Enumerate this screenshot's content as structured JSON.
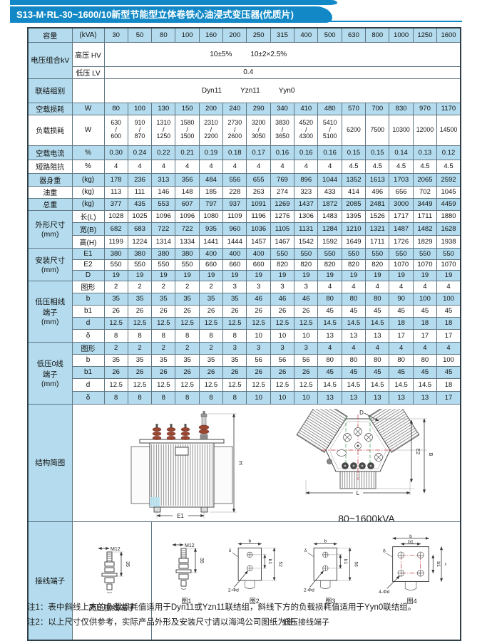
{
  "title": "S13-M·RL-30~1600/10新型节能型立体卷铁心油浸式变压器(优质片)",
  "table": {
    "cap": {
      "label": "容量",
      "unit": "(kVA)",
      "values": [
        "30",
        "50",
        "80",
        "100",
        "160",
        "200",
        "250",
        "315",
        "400",
        "500",
        "630",
        "800",
        "1000",
        "1250",
        "1600"
      ]
    },
    "volt": {
      "label": "电压组合kV",
      "hv": "高压 HV",
      "hv1": "10±5%",
      "hv2": "10±2×2.5%",
      "lv": "低压 LV",
      "lv_val": "0.4"
    },
    "vec": {
      "label": "联结组别",
      "v1": "Dyn11",
      "v2": "Yzn11",
      "v3": "Yyn0"
    },
    "groups": {
      "dim": "外形尺寸\n(mm)",
      "inst": "安装尺寸\n(mm)",
      "lvp": "低压相线\n端子\n(mm)",
      "lvz": "低压0线\n端子\n(mm)",
      "struct": "结构简图",
      "term": "接线端子"
    },
    "rows": {
      "nl": {
        "label": "空载损耗",
        "unit": "W",
        "values": [
          "80",
          "100",
          "130",
          "150",
          "200",
          "240",
          "290",
          "340",
          "410",
          "480",
          "570",
          "700",
          "830",
          "970",
          "1170"
        ]
      },
      "ll": {
        "label": "负载损耗",
        "unit": "W",
        "values": [
          "630\n/\n600",
          "910\n/\n870",
          "1310\n/\n1250",
          "1580\n/\n1500",
          "2310\n/\n2200",
          "2730\n/\n2600",
          "3200\n/\n3050",
          "3830\n/\n3650",
          "4520\n/\n4300",
          "5410\n/\n5100",
          "6200",
          "7500",
          "10300",
          "12000",
          "14500"
        ]
      },
      "nc": {
        "label": "空载电流",
        "unit": "%",
        "values": [
          "0.30",
          "0.24",
          "0.22",
          "0.21",
          "0.19",
          "0.18",
          "0.17",
          "0.16",
          "0.16",
          "0.16",
          "0.15",
          "0.15",
          "0.14",
          "0.13",
          "0.12"
        ]
      },
      "imp": {
        "label": "短路阻抗",
        "unit": "%",
        "values": [
          "4",
          "4",
          "4",
          "4",
          "4",
          "4",
          "4",
          "4",
          "4",
          "4",
          "4.5",
          "4.5",
          "4.5",
          "4.5",
          "4.5"
        ]
      },
      "bw": {
        "label": "器身重",
        "unit": "(kg)",
        "values": [
          "178",
          "236",
          "313",
          "356",
          "484",
          "556",
          "655",
          "769",
          "896",
          "1044",
          "1352",
          "1613",
          "1703",
          "2065",
          "2592"
        ]
      },
      "ow": {
        "label": "油重",
        "unit": "(kg)",
        "values": [
          "113",
          "111",
          "146",
          "148",
          "185",
          "228",
          "263",
          "274",
          "323",
          "433",
          "414",
          "496",
          "656",
          "702",
          "1045"
        ]
      },
      "tw": {
        "label": "总重",
        "unit": "(kg)",
        "values": [
          "377",
          "435",
          "553",
          "607",
          "797",
          "937",
          "1091",
          "1269",
          "1437",
          "1872",
          "2085",
          "2481",
          "3000",
          "3449",
          "4459"
        ]
      },
      "dl": {
        "label": "长(L)",
        "values": [
          "1028",
          "1025",
          "1096",
          "1096",
          "1080",
          "1109",
          "1196",
          "1276",
          "1306",
          "1483",
          "1395",
          "1526",
          "1717",
          "1711",
          "1880"
        ]
      },
      "db": {
        "label": "宽(B)",
        "values": [
          "682",
          "683",
          "722",
          "722",
          "935",
          "960",
          "1036",
          "1105",
          "1131",
          "1284",
          "1210",
          "1321",
          "1487",
          "1482",
          "1628"
        ]
      },
      "dh": {
        "label": "高(H)",
        "values": [
          "1199",
          "1224",
          "1314",
          "1334",
          "1441",
          "1444",
          "1457",
          "1467",
          "1542",
          "1592",
          "1649",
          "1711",
          "1726",
          "1829",
          "1938"
        ]
      },
      "e1": {
        "label": "E1",
        "values": [
          "380",
          "380",
          "380",
          "380",
          "400",
          "400",
          "400",
          "550",
          "550",
          "550",
          "550",
          "550",
          "550",
          "550",
          "550"
        ]
      },
      "e2": {
        "label": "E2",
        "values": [
          "550",
          "550",
          "550",
          "550",
          "660",
          "660",
          "660",
          "820",
          "820",
          "820",
          "820",
          "820",
          "1070",
          "1070",
          "1070"
        ]
      },
      "dd": {
        "label": "D",
        "values": [
          "19",
          "19",
          "19",
          "19",
          "19",
          "19",
          "19",
          "19",
          "19",
          "19",
          "19",
          "19",
          "19",
          "19",
          "19"
        ]
      },
      "pf": {
        "label": "图形",
        "values": [
          "2",
          "2",
          "2",
          "2",
          "2",
          "3",
          "3",
          "3",
          "3",
          "4",
          "4",
          "4",
          "4",
          "4",
          "4"
        ]
      },
      "pb": {
        "label": "b",
        "values": [
          "35",
          "35",
          "35",
          "35",
          "35",
          "35",
          "46",
          "46",
          "46",
          "80",
          "80",
          "80",
          "90",
          "100",
          "100"
        ]
      },
      "pb1": {
        "label": "b1",
        "values": [
          "26",
          "26",
          "26",
          "26",
          "26",
          "26",
          "26",
          "26",
          "26",
          "45",
          "45",
          "45",
          "45",
          "45",
          "45"
        ]
      },
      "pd": {
        "label": "d",
        "values": [
          "12.5",
          "12.5",
          "12.5",
          "12.5",
          "12.5",
          "12.5",
          "12.5",
          "12.5",
          "12.5",
          "14.5",
          "14.5",
          "14.5",
          "18",
          "18",
          "18"
        ]
      },
      "pdel": {
        "label": "δ",
        "values": [
          "8",
          "8",
          "8",
          "8",
          "8",
          "8",
          "10",
          "10",
          "10",
          "13",
          "13",
          "13",
          "17",
          "17",
          "17"
        ]
      },
      "zf": {
        "label": "图形",
        "values": [
          "2",
          "2",
          "2",
          "2",
          "2",
          "3",
          "3",
          "3",
          "3",
          "4",
          "4",
          "4",
          "4",
          "4",
          "4"
        ]
      },
      "zb": {
        "label": "b",
        "values": [
          "35",
          "35",
          "35",
          "35",
          "35",
          "35",
          "56",
          "56",
          "56",
          "80",
          "80",
          "80",
          "80",
          "80",
          "100"
        ]
      },
      "zb1": {
        "label": "b1",
        "values": [
          "26",
          "26",
          "26",
          "26",
          "26",
          "26",
          "26",
          "26",
          "26",
          "45",
          "45",
          "45",
          "45",
          "45",
          "45"
        ]
      },
      "zd": {
        "label": "d",
        "values": [
          "12.5",
          "12.5",
          "12.5",
          "12.5",
          "12.5",
          "12.5",
          "12.5",
          "12.5",
          "12.5",
          "14.5",
          "14.5",
          "14.5",
          "14.5",
          "14.5",
          "18"
        ]
      },
      "zdel": {
        "label": "δ",
        "values": [
          "8",
          "8",
          "8",
          "8",
          "8",
          "8",
          "10",
          "10",
          "10",
          "13",
          "13",
          "13",
          "13",
          "13",
          "17"
        ]
      }
    }
  },
  "structure": {
    "caption": "80~1600kVA",
    "h": "H",
    "e1": "E1",
    "d": "D",
    "e2": "E2",
    "b": "B",
    "l": "L"
  },
  "terminals": {
    "hv_caption": "高压接线端子",
    "lv_caption": "低压接线端子",
    "m12": "M12",
    "dim35": "35",
    "fig1": "图1",
    "fig2": "图2",
    "fig3": "图3",
    "fig4": "图4",
    "b": "b",
    "b1": "b1",
    "delta": "δ",
    "d2": "2-Φd",
    "d4": "4-Φd",
    "dim52": "52",
    "dim56": "56"
  },
  "notes": [
    "注1：表中斜线上方的负载损耗值适用于Dyn11或Yzn11联结组，斜线下方的负载损耗值适用于Yyn0联结组。",
    "注2：以上尺寸仅供参考，实际产品外形及安装尺寸请以海鸿公司图纸为准。"
  ],
  "colors": {
    "banner_blue": "#1289c6",
    "cell_blue": "#b4dcee",
    "bushing_red": "#9c4632"
  }
}
